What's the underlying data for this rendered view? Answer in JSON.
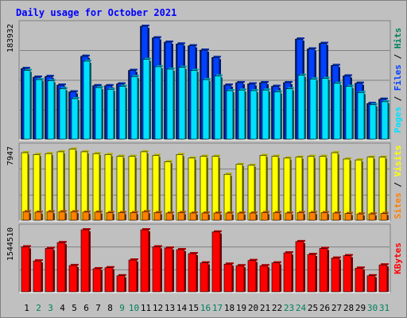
{
  "title": "Daily usage for October 2021",
  "colors": {
    "background": "#c0c0c0",
    "plot_bg": "#c0c0c0",
    "grid": "#808080",
    "title": "#0000ff",
    "hits": "#00805c",
    "files": "#0040ff",
    "pages": "#00e0ff",
    "visits": "#ffff00",
    "sites": "#ff8000",
    "kbytes": "#ff0000",
    "day_weekday": "#000000",
    "day_weekend": "#00805c"
  },
  "chart_data": [
    {
      "type": "bar",
      "panel": "top",
      "ylabel_parts": [
        "Pages",
        "Files",
        "Hits"
      ],
      "ymax_label": "183932",
      "ylim": [
        0,
        183932
      ],
      "categories": [
        "1",
        "2",
        "3",
        "4",
        "5",
        "6",
        "7",
        "8",
        "9",
        "10",
        "11",
        "12",
        "13",
        "14",
        "15",
        "16",
        "17",
        "18",
        "19",
        "20",
        "21",
        "22",
        "23",
        "24",
        "25",
        "26",
        "27",
        "28",
        "29",
        "30",
        "31"
      ],
      "series": [
        {
          "name": "Hits",
          "values": [
            115000,
            101000,
            102000,
            88000,
            77000,
            135000,
            87000,
            87000,
            90000,
            112000,
            183932,
            165000,
            158000,
            155000,
            152000,
            145000,
            133000,
            88000,
            92000,
            90000,
            92000,
            86000,
            92000,
            163000,
            147000,
            156000,
            120000,
            103000,
            91000,
            58000,
            65000
          ]
        },
        {
          "name": "Files",
          "values": [
            115000,
            101000,
            102000,
            88000,
            77000,
            135000,
            87000,
            87000,
            90000,
            112000,
            183932,
            165000,
            158000,
            155000,
            152000,
            145000,
            133000,
            88000,
            92000,
            90000,
            92000,
            86000,
            92000,
            163000,
            147000,
            156000,
            120000,
            103000,
            91000,
            58000,
            65000
          ]
        },
        {
          "name": "Pages",
          "values": [
            112000,
            97000,
            95000,
            82000,
            66000,
            127000,
            84000,
            81000,
            86000,
            102000,
            130000,
            118000,
            114000,
            117000,
            112000,
            97000,
            103000,
            79000,
            80000,
            79000,
            80000,
            77000,
            82000,
            104000,
            98000,
            99000,
            91000,
            86000,
            76000,
            56000,
            61000
          ]
        }
      ]
    },
    {
      "type": "bar",
      "panel": "middle",
      "ylabel_parts": [
        "Sites",
        "Visits"
      ],
      "ymax_label": "7947",
      "ylim": [
        0,
        7947
      ],
      "categories": [
        "1",
        "2",
        "3",
        "4",
        "5",
        "6",
        "7",
        "8",
        "9",
        "10",
        "11",
        "12",
        "13",
        "14",
        "15",
        "16",
        "17",
        "18",
        "19",
        "20",
        "21",
        "22",
        "23",
        "24",
        "25",
        "26",
        "27",
        "28",
        "29",
        "30",
        "31"
      ],
      "series": [
        {
          "name": "Visits",
          "values": [
            7500,
            7300,
            7400,
            7600,
            7900,
            7600,
            7400,
            7300,
            7100,
            7100,
            7600,
            7200,
            6500,
            7300,
            6900,
            7100,
            7100,
            5100,
            6200,
            6100,
            7200,
            7100,
            6900,
            7000,
            7100,
            7100,
            7500,
            6800,
            6700,
            7000,
            7000
          ]
        },
        {
          "name": "Sites",
          "values": [
            950,
            900,
            950,
            950,
            950,
            900,
            900,
            850,
            850,
            850,
            950,
            850,
            800,
            850,
            800,
            800,
            800,
            800,
            800,
            800,
            850,
            850,
            800,
            850,
            850,
            850,
            800,
            750,
            700,
            700,
            750
          ]
        }
      ]
    },
    {
      "type": "bar",
      "panel": "bottom",
      "ylabel_parts": [
        "KBytes"
      ],
      "ymax_label": "1544510",
      "ylim": [
        0,
        1544510
      ],
      "categories": [
        "1",
        "2",
        "3",
        "4",
        "5",
        "6",
        "7",
        "8",
        "9",
        "10",
        "11",
        "12",
        "13",
        "14",
        "15",
        "16",
        "17",
        "18",
        "19",
        "20",
        "21",
        "22",
        "23",
        "24",
        "25",
        "26",
        "27",
        "28",
        "29",
        "30",
        "31"
      ],
      "series": [
        {
          "name": "KBytes",
          "values": [
            1120000,
            770000,
            1080000,
            1225000,
            655000,
            1544510,
            575000,
            600000,
            400000,
            792000,
            1544510,
            1120000,
            1090000,
            1050000,
            950000,
            720000,
            1490000,
            690000,
            650000,
            780000,
            650000,
            720000,
            970000,
            1250000,
            930000,
            1080000,
            840000,
            900000,
            590000,
            400000,
            670000
          ]
        }
      ]
    }
  ],
  "days": [
    {
      "label": "1",
      "weekend": false
    },
    {
      "label": "2",
      "weekend": true
    },
    {
      "label": "3",
      "weekend": true
    },
    {
      "label": "4",
      "weekend": false
    },
    {
      "label": "5",
      "weekend": false
    },
    {
      "label": "6",
      "weekend": false
    },
    {
      "label": "7",
      "weekend": false
    },
    {
      "label": "8",
      "weekend": false
    },
    {
      "label": "9",
      "weekend": true
    },
    {
      "label": "10",
      "weekend": true
    },
    {
      "label": "11",
      "weekend": false
    },
    {
      "label": "12",
      "weekend": false
    },
    {
      "label": "13",
      "weekend": false
    },
    {
      "label": "14",
      "weekend": false
    },
    {
      "label": "15",
      "weekend": false
    },
    {
      "label": "16",
      "weekend": true
    },
    {
      "label": "17",
      "weekend": true
    },
    {
      "label": "18",
      "weekend": false
    },
    {
      "label": "19",
      "weekend": false
    },
    {
      "label": "20",
      "weekend": false
    },
    {
      "label": "21",
      "weekend": false
    },
    {
      "label": "22",
      "weekend": false
    },
    {
      "label": "23",
      "weekend": true
    },
    {
      "label": "24",
      "weekend": true
    },
    {
      "label": "25",
      "weekend": false
    },
    {
      "label": "26",
      "weekend": false
    },
    {
      "label": "27",
      "weekend": false
    },
    {
      "label": "28",
      "weekend": false
    },
    {
      "label": "29",
      "weekend": false
    },
    {
      "label": "30",
      "weekend": true
    },
    {
      "label": "31",
      "weekend": true
    }
  ]
}
